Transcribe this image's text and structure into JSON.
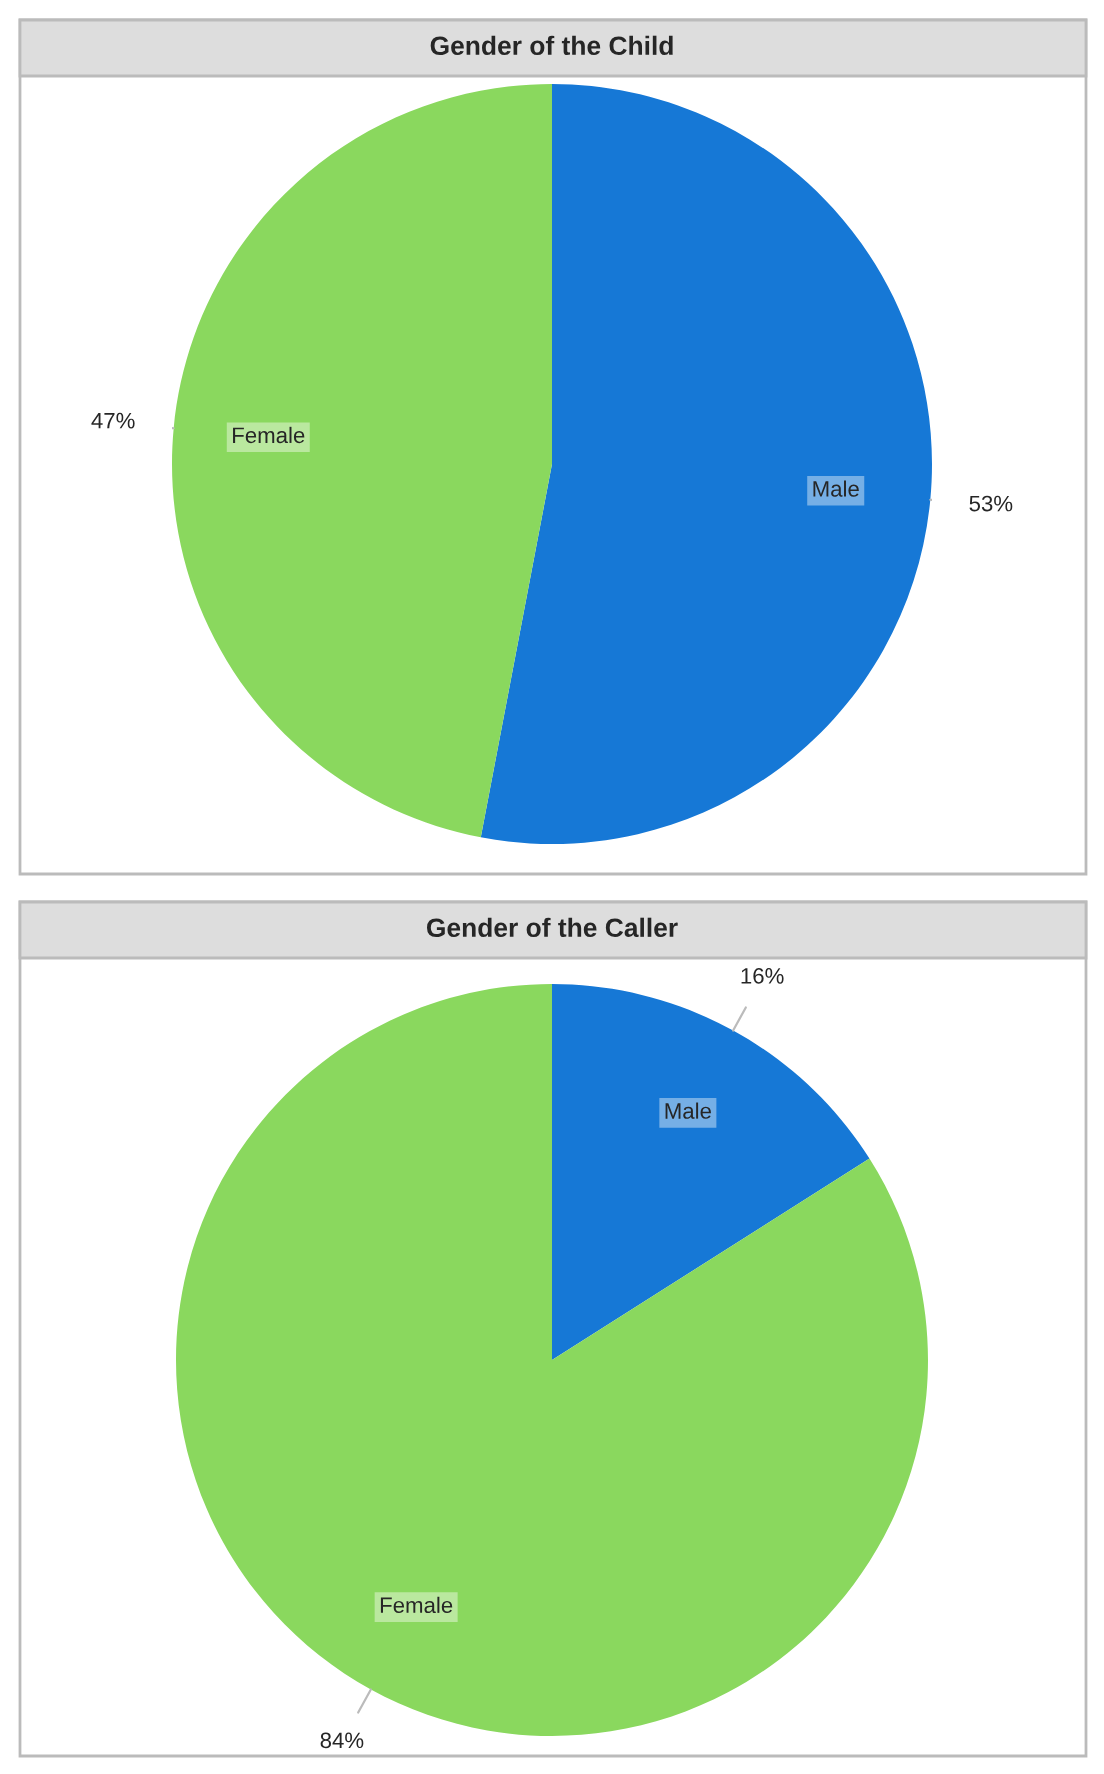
{
  "chart_data": [
    {
      "type": "pie",
      "title": "Gender of the Child",
      "categories": [
        "Male",
        "Female"
      ],
      "values": [
        53,
        47
      ],
      "colors": [
        "#1678d6",
        "#8ad85e"
      ],
      "value_labels": [
        "53%",
        "47%"
      ]
    },
    {
      "type": "pie",
      "title": "Gender of the Caller",
      "categories": [
        "Male",
        "Female"
      ],
      "values": [
        16,
        84
      ],
      "colors": [
        "#1678d6",
        "#8ad85e"
      ],
      "value_labels": [
        "16%",
        "84%"
      ]
    }
  ]
}
